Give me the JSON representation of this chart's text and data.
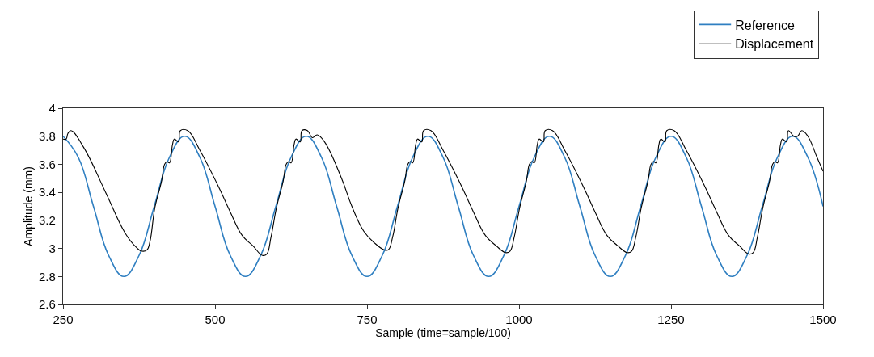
{
  "chart_data": {
    "type": "line",
    "xlabel": "Sample (time=sample/100)",
    "ylabel": "Amplitude (mm)",
    "xlim": [
      250,
      1500
    ],
    "xticks": [
      250,
      500,
      750,
      1000,
      1250,
      1500
    ],
    "ylim": [
      2.6,
      4
    ],
    "yticks": [
      2.6,
      2.8,
      3,
      3.2,
      3.4,
      3.6,
      3.8,
      4
    ],
    "legend": "top right",
    "marker": "none",
    "line_style": "solid",
    "series": [
      {
        "name": "Reference",
        "color": "#2f7fc1",
        "x": [
          250,
          275,
          300,
          325,
          350,
          375,
          400,
          425,
          450,
          475,
          500,
          525,
          550,
          575,
          600,
          625,
          650,
          675,
          700,
          725,
          750,
          775,
          800,
          825,
          850,
          875,
          900,
          925,
          950,
          975,
          1000,
          1025,
          1050,
          1075,
          1100,
          1125,
          1150,
          1175,
          1200,
          1225,
          1250,
          1275,
          1300,
          1325,
          1350,
          1375,
          1400,
          1425,
          1450,
          1475,
          1500
        ],
        "values": [
          3.8,
          3.65,
          3.3,
          2.95,
          2.8,
          2.95,
          3.3,
          3.65,
          3.8,
          3.65,
          3.3,
          2.95,
          2.8,
          2.95,
          3.3,
          3.65,
          3.8,
          3.65,
          3.3,
          2.95,
          2.8,
          2.95,
          3.3,
          3.65,
          3.8,
          3.65,
          3.3,
          2.95,
          2.8,
          2.95,
          3.3,
          3.65,
          3.8,
          3.65,
          3.3,
          2.95,
          2.8,
          2.95,
          3.3,
          3.65,
          3.8,
          3.65,
          3.3,
          2.95,
          2.8,
          2.95,
          3.3,
          3.65,
          3.8,
          3.65,
          3.3
        ]
      },
      {
        "name": "Displacement",
        "color": "#000000",
        "x": [
          250,
          255,
          258,
          263,
          284,
          320,
          352,
          370,
          380,
          388,
          393,
          401,
          412,
          417,
          421,
          425,
          430,
          433,
          440,
          443,
          455,
          475,
          508,
          525,
          545,
          562,
          578,
          585,
          592,
          601,
          612,
          617,
          621,
          625,
          630,
          633,
          640,
          643,
          652,
          660,
          668,
          680,
          708,
          725,
          745,
          762,
          778,
          785,
          792,
          801,
          812,
          817,
          821,
          825,
          830,
          833,
          840,
          843,
          855,
          875,
          908,
          925,
          945,
          962,
          978,
          985,
          992,
          1001,
          1012,
          1017,
          1021,
          1025,
          1030,
          1033,
          1040,
          1043,
          1055,
          1075,
          1108,
          1125,
          1145,
          1162,
          1178,
          1185,
          1192,
          1201,
          1212,
          1217,
          1221,
          1225,
          1230,
          1233,
          1240,
          1243,
          1255,
          1275,
          1308,
          1325,
          1345,
          1362,
          1378,
          1385,
          1392,
          1401,
          1412,
          1417,
          1421,
          1425,
          1430,
          1433,
          1440,
          1443,
          1452,
          1458,
          1465,
          1475,
          1490,
          1500
        ],
        "values": [
          3.78,
          3.78,
          3.82,
          3.84,
          3.72,
          3.4,
          3.11,
          3.01,
          2.98,
          2.99,
          3.05,
          3.29,
          3.48,
          3.6,
          3.62,
          3.61,
          3.74,
          3.78,
          3.76,
          3.84,
          3.84,
          3.7,
          3.42,
          3.26,
          3.09,
          3.02,
          2.95,
          2.96,
          3.08,
          3.29,
          3.48,
          3.6,
          3.62,
          3.61,
          3.74,
          3.78,
          3.76,
          3.84,
          3.84,
          3.79,
          3.81,
          3.76,
          3.5,
          3.3,
          3.12,
          3.04,
          2.99,
          2.99,
          3.08,
          3.29,
          3.48,
          3.6,
          3.62,
          3.61,
          3.74,
          3.78,
          3.76,
          3.84,
          3.84,
          3.7,
          3.42,
          3.26,
          3.09,
          3.02,
          2.97,
          2.98,
          3.08,
          3.29,
          3.48,
          3.6,
          3.62,
          3.61,
          3.74,
          3.78,
          3.76,
          3.84,
          3.84,
          3.7,
          3.42,
          3.26,
          3.09,
          3.02,
          2.97,
          2.98,
          3.08,
          3.29,
          3.48,
          3.6,
          3.62,
          3.61,
          3.74,
          3.78,
          3.76,
          3.84,
          3.84,
          3.7,
          3.42,
          3.26,
          3.09,
          3.02,
          2.96,
          2.97,
          3.08,
          3.29,
          3.48,
          3.6,
          3.62,
          3.61,
          3.74,
          3.78,
          3.76,
          3.84,
          3.8,
          3.8,
          3.84,
          3.8,
          3.65,
          3.55
        ]
      }
    ]
  }
}
